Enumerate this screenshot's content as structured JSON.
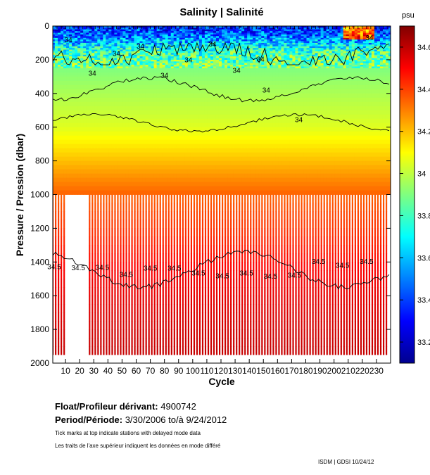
{
  "chart_data": {
    "type": "heatmap",
    "title": "Salinity | Salinité",
    "xlabel": "Cycle",
    "ylabel": "Pressure / Pression (dbar)",
    "xlim": [
      1,
      240
    ],
    "ylim": [
      0,
      2000
    ],
    "x_ticks": [
      10,
      20,
      30,
      40,
      50,
      60,
      70,
      80,
      90,
      100,
      110,
      120,
      130,
      140,
      150,
      160,
      170,
      180,
      190,
      200,
      210,
      220,
      230
    ],
    "y_ticks": [
      0,
      200,
      400,
      600,
      800,
      1000,
      1200,
      1400,
      1600,
      1800,
      2000
    ],
    "colorbar": {
      "label": "psu",
      "range": [
        33.1,
        34.7
      ],
      "ticks": [
        33.2,
        33.4,
        33.6,
        33.8,
        34,
        34.2,
        34.4,
        34.6
      ]
    },
    "profile_max_depth_dbar_early": 1000,
    "profile_max_depth_dbar_late": 1950,
    "salinity_profile": [
      {
        "pressure": 0,
        "salinity": 33.35
      },
      {
        "pressure": 50,
        "salinity": 33.45
      },
      {
        "pressure": 100,
        "salinity": 33.6
      },
      {
        "pressure": 150,
        "salinity": 33.8
      },
      {
        "pressure": 250,
        "salinity": 33.9
      },
      {
        "pressure": 400,
        "salinity": 33.97
      },
      {
        "pressure": 600,
        "salinity": 34.05
      },
      {
        "pressure": 800,
        "salinity": 34.2
      },
      {
        "pressure": 1000,
        "salinity": 34.35
      },
      {
        "pressure": 1200,
        "salinity": 34.42
      },
      {
        "pressure": 1500,
        "salinity": 34.52
      },
      {
        "pressure": 2000,
        "salinity": 34.6
      }
    ],
    "contours": [
      {
        "level": 34,
        "label": "34",
        "depth_range_dbar": [
          100,
          230
        ]
      },
      {
        "level": 34,
        "label": "34",
        "depth_range_dbar": [
          300,
          450
        ]
      },
      {
        "level": 34,
        "label": "34",
        "depth_range_dbar": [
          520,
          630
        ]
      },
      {
        "level": 34.5,
        "label": "34.5",
        "depth_range_dbar": [
          1330,
          1560
        ]
      }
    ],
    "contour_labels": [
      "34",
      "34",
      "34",
      "34",
      "34",
      "34",
      "34",
      "34",
      "34",
      "34",
      "34",
      "34",
      "34",
      "34.5",
      "34.5",
      "34.5",
      "34.5",
      "34.5",
      "34.5",
      "34.5",
      "34.5",
      "34.5",
      "34.5",
      "34.5",
      "34.5",
      "34.5",
      "34.5"
    ]
  },
  "info": {
    "float_label": "Float/Profileur dérivant:",
    "float_id": "4900742",
    "period_label": "Period/Période:",
    "period_value": "3/30/2006  to/à  9/24/2012",
    "note_en": "Tick marks at top indicate stations with delayed mode data",
    "note_fr": "Les traits de l'axe supérieur indiquent les données en mode différé",
    "credit": "ISDM | GDSI  10/24/12"
  }
}
